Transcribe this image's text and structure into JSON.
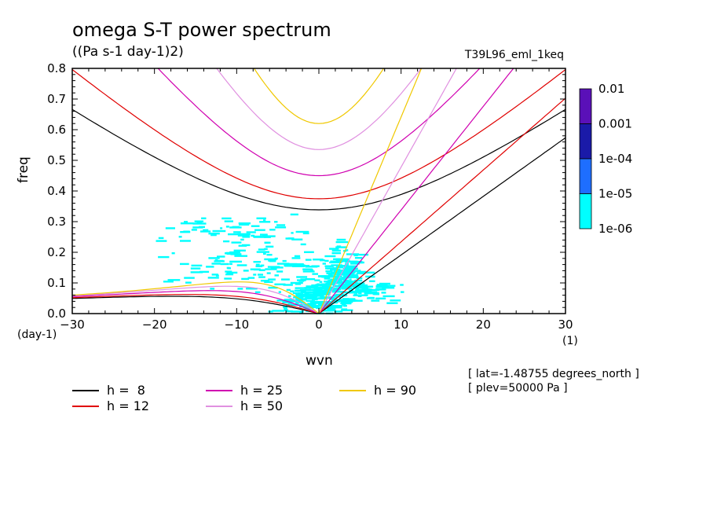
{
  "chart_data": {
    "type": "heatmap",
    "title": "omega S-T power spectrum",
    "units": "((Pa s-1 day-1)2)",
    "run_name": "T39L96_eml_1keq",
    "xlabel": "wvn",
    "ylabel": "freq",
    "x_unit": "(1)",
    "y_unit": "(day-1)",
    "xlim": [
      -30,
      30
    ],
    "ylim": [
      0,
      0.8
    ],
    "x_ticks": [
      -30,
      -20,
      -10,
      0,
      10,
      20,
      30
    ],
    "x_tick_labels": [
      "-30",
      "-20",
      "-10",
      "0",
      "10",
      "20",
      "30"
    ],
    "y_ticks": [
      0,
      0.1,
      0.2,
      0.3,
      0.4,
      0.5,
      0.6,
      0.7,
      0.8
    ],
    "y_tick_labels": [
      "0.0",
      "0.1",
      "0.2",
      "0.3",
      "0.4",
      "0.5",
      "0.6",
      "0.7",
      "0.8"
    ],
    "colorbar": {
      "labels": [
        "0.01",
        "0.001",
        "1e-04",
        "1e-05",
        "1e-06"
      ],
      "colors": [
        "#5a10b8",
        "#1a1aa8",
        "#1e6eff",
        "#00ffff"
      ]
    },
    "dispersion_curves": [
      {
        "label": "h =  8",
        "h": 8,
        "color": "#000000"
      },
      {
        "label": "h = 12",
        "h": 12,
        "color": "#e00000"
      },
      {
        "label": "h = 25",
        "h": 25,
        "color": "#d000b0"
      },
      {
        "label": "h = 50",
        "h": 50,
        "color": "#e090e0"
      },
      {
        "label": "h = 90",
        "h": 90,
        "color": "#f0c800"
      }
    ],
    "dominant_power_level": "1e-06 to 1e-05",
    "annotations": [
      "[ lat=-1.48755 degrees_north ]",
      "[ plev=50000 Pa ]"
    ]
  }
}
